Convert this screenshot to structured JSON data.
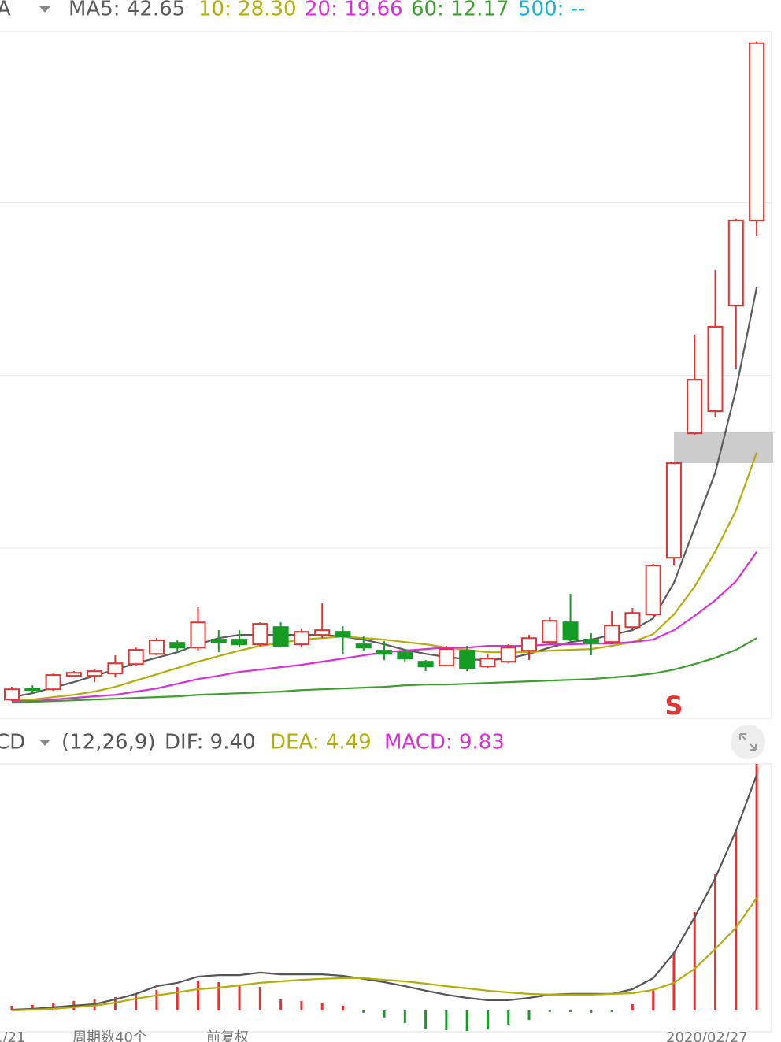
{
  "chart_data": [
    {
      "type": "candlestick",
      "title": "A",
      "legend": [
        {
          "text": "MA5: 42.65",
          "color": "#5b5b5b"
        },
        {
          "text": "10: 28.30",
          "color": "#b3ad0a"
        },
        {
          "text": "20: 19.66",
          "color": "#d92ed9"
        },
        {
          "text": "60: 12.17",
          "color": "#3c9e2e"
        },
        {
          "text": "500: --",
          "color": "#1ab0d8"
        }
      ],
      "open": [
        6.83,
        7.79,
        7.72,
        8.89,
        8.89,
        9.09,
        9.91,
        10.8,
        11.76,
        11.35,
        12.04,
        12.04,
        11.63,
        13.13,
        11.63,
        12.45,
        12.72,
        11.63,
        11.08,
        10.94,
        10.12,
        9.78,
        11.08,
        9.71,
        10.12,
        11.08,
        11.83,
        13.54,
        12.04,
        11.83,
        13.13,
        14.23,
        19.16,
        29.98,
        31.9,
        41.08,
        48.48
      ],
      "close": [
        7.72,
        7.65,
        8.96,
        9.16,
        9.3,
        9.98,
        11.15,
        11.97,
        11.35,
        13.54,
        11.83,
        11.63,
        13.41,
        11.49,
        12.72,
        12.86,
        12.31,
        11.35,
        10.8,
        10.39,
        9.71,
        11.22,
        9.57,
        10.39,
        11.35,
        12.17,
        13.68,
        12.04,
        11.76,
        13.27,
        14.36,
        18.48,
        27.38,
        34.64,
        39.23,
        48.48,
        63.89
      ],
      "high": [
        7.93,
        8.06,
        9.09,
        9.3,
        9.43,
        10.67,
        11.35,
        12.17,
        11.97,
        14.85,
        12.86,
        12.86,
        13.54,
        13.54,
        13.0,
        15.19,
        13.2,
        12.31,
        11.9,
        11.22,
        10.26,
        11.49,
        11.49,
        10.8,
        11.63,
        12.45,
        13.96,
        16.01,
        12.59,
        14.5,
        14.78,
        18.61,
        27.52,
        38.55,
        44.16,
        48.62,
        64.03
      ],
      "low": [
        6.69,
        7.38,
        7.59,
        8.75,
        8.34,
        8.75,
        9.78,
        10.67,
        11.08,
        11.08,
        10.94,
        11.35,
        11.49,
        11.35,
        11.35,
        12.17,
        10.8,
        11.08,
        10.26,
        10.12,
        9.3,
        9.71,
        9.3,
        9.57,
        9.98,
        10.26,
        11.63,
        11.9,
        10.67,
        11.63,
        13.0,
        14.09,
        18.48,
        29.85,
        31.35,
        35.6,
        47.11
      ],
      "up_color": "#e8322f",
      "down_color": "#149c24",
      "series": [
        {
          "color": "#5b5b5b",
          "values": [
            7.04,
            7.38,
            7.86,
            8.34,
            8.89,
            9.43,
            9.98,
            10.46,
            10.94,
            11.63,
            12.17,
            12.45,
            12.45,
            12.45,
            12.45,
            12.45,
            12.31,
            12.04,
            11.63,
            11.15,
            10.8,
            10.53,
            10.33,
            10.26,
            10.39,
            10.8,
            11.35,
            11.83,
            12.04,
            12.45,
            12.86,
            13.89,
            16.97,
            21.76,
            26.56,
            33.75,
            42.65
          ]
        },
        {
          "color": "#b3ad0a",
          "values": [
            6.69,
            6.83,
            7.04,
            7.24,
            7.52,
            7.93,
            8.48,
            9.02,
            9.57,
            10.12,
            10.6,
            11.08,
            11.49,
            11.76,
            12.04,
            12.17,
            12.31,
            12.17,
            12.04,
            11.83,
            11.63,
            11.35,
            11.15,
            10.94,
            10.94,
            10.94,
            11.08,
            11.15,
            11.22,
            11.49,
            11.83,
            12.52,
            14.23,
            16.63,
            19.71,
            23.27,
            28.3
          ]
        },
        {
          "color": "#d92ed9",
          "values": [
            6.69,
            6.69,
            6.83,
            6.97,
            7.11,
            7.24,
            7.52,
            7.79,
            8.2,
            8.61,
            8.89,
            9.23,
            9.43,
            9.64,
            9.85,
            10.12,
            10.39,
            10.67,
            10.94,
            11.08,
            11.22,
            11.35,
            11.35,
            11.49,
            11.49,
            11.49,
            11.63,
            11.63,
            11.7,
            11.7,
            11.83,
            12.04,
            12.86,
            14.09,
            15.46,
            17.11,
            19.66
          ]
        },
        {
          "color": "#3c9e2e",
          "values": [
            6.56,
            6.63,
            6.69,
            6.76,
            6.83,
            6.9,
            6.97,
            7.04,
            7.11,
            7.24,
            7.31,
            7.38,
            7.45,
            7.52,
            7.65,
            7.72,
            7.79,
            7.86,
            7.93,
            8.06,
            8.13,
            8.13,
            8.2,
            8.27,
            8.34,
            8.41,
            8.48,
            8.54,
            8.61,
            8.75,
            8.89,
            9.09,
            9.43,
            9.91,
            10.46,
            11.15,
            12.17
          ]
        }
      ],
      "ylim": [
        5.2,
        64.9
      ],
      "grid": [
        20,
        35,
        50
      ],
      "annotation": "S"
    },
    {
      "type": "macd",
      "title": "CD",
      "params": "(12,26,9)",
      "legend": [
        {
          "text": "DIF: 9.40",
          "color": "#555555"
        },
        {
          "text": "DEA: 4.49",
          "color": "#b3ad0a"
        },
        {
          "text": "MACD: 9.83",
          "color": "#d92ed9"
        }
      ],
      "dif": [
        0.03,
        0.06,
        0.13,
        0.19,
        0.25,
        0.44,
        0.66,
        0.97,
        1.1,
        1.35,
        1.41,
        1.41,
        1.51,
        1.44,
        1.44,
        1.44,
        1.38,
        1.26,
        1.13,
        0.97,
        0.79,
        0.63,
        0.5,
        0.41,
        0.41,
        0.5,
        0.63,
        0.66,
        0.66,
        0.66,
        0.85,
        1.29,
        2.29,
        3.71,
        5.28,
        7.16,
        9.4
      ],
      "dea": [
        0.0,
        0.03,
        0.06,
        0.13,
        0.19,
        0.31,
        0.47,
        0.6,
        0.72,
        0.85,
        0.91,
        1.0,
        1.1,
        1.16,
        1.22,
        1.26,
        1.29,
        1.29,
        1.22,
        1.16,
        1.07,
        0.97,
        0.88,
        0.79,
        0.72,
        0.66,
        0.63,
        0.63,
        0.63,
        0.66,
        0.69,
        0.82,
        1.1,
        1.66,
        2.45,
        3.3,
        4.49
      ],
      "macd": [
        0.19,
        0.22,
        0.31,
        0.38,
        0.44,
        0.53,
        0.69,
        0.82,
        0.94,
        1.16,
        1.13,
        1.04,
        0.94,
        0.44,
        0.38,
        0.31,
        0.19,
        -0.09,
        -0.28,
        -0.5,
        -0.75,
        -0.79,
        -0.82,
        -0.75,
        -0.57,
        -0.38,
        -0.06,
        -0.06,
        -0.09,
        -0.06,
        0.25,
        0.85,
        2.29,
        3.93,
        5.43,
        7.16,
        9.83
      ],
      "up_color": "#e8322f",
      "down_color": "#149c24",
      "ylim": [
        -0.85,
        9.83
      ]
    }
  ],
  "footer": [
    "1/21",
    "周期数40个",
    "前复权",
    "2020/02/27"
  ]
}
